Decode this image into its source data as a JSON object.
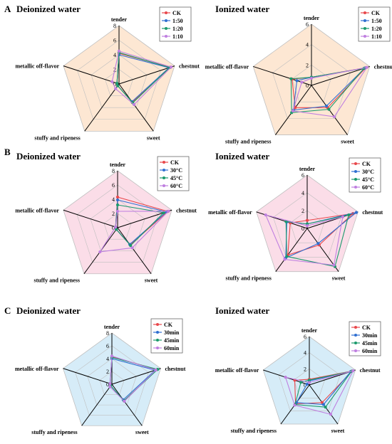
{
  "colors": {
    "CK": "#e8474b",
    "s2": "#2f6fd1",
    "s3": "#1a9a6c",
    "s4": "#bf7fe0",
    "bg_A": "#fde7d3",
    "bg_B": "#fbdde8",
    "bg_C": "#d6ecf8",
    "grid": "#bfbfbf"
  },
  "axes": [
    "tender",
    "chestnut",
    "sweet",
    "stuffy and ripeness",
    "metallic off-flavor"
  ],
  "chart_data": [
    {
      "type": "radar",
      "panel": "A",
      "title": "Deionized water",
      "rmax": 8,
      "ticks": [
        0,
        2,
        4,
        6,
        8
      ],
      "series": [
        {
          "name": "CK",
          "values": [
            4.2,
            7.4,
            3.1,
            0.3,
            0.3
          ]
        },
        {
          "name": "1:50",
          "values": [
            4.0,
            7.2,
            3.0,
            0.3,
            0.3
          ]
        },
        {
          "name": "1:20",
          "values": [
            4.3,
            7.3,
            3.2,
            0.3,
            0.3
          ]
        },
        {
          "name": "1:10",
          "values": [
            4.5,
            7.5,
            3.5,
            0.8,
            1.0
          ]
        }
      ]
    },
    {
      "type": "radar",
      "panel": "A",
      "title": "Ionized water",
      "rmax": 6,
      "ticks": [
        0,
        2,
        4,
        6
      ],
      "series": [
        {
          "name": "CK",
          "values": [
            0.8,
            5.6,
            2.7,
            2.7,
            2.0
          ]
        },
        {
          "name": "1:50",
          "values": [
            0.8,
            5.5,
            2.5,
            3.0,
            1.5
          ]
        },
        {
          "name": "1:20",
          "values": [
            0.8,
            5.4,
            2.9,
            3.3,
            2.1
          ]
        },
        {
          "name": "1:10",
          "values": [
            0.7,
            5.7,
            3.8,
            3.1,
            1.0
          ]
        }
      ]
    },
    {
      "type": "radar",
      "panel": "B",
      "title": "Deionized water",
      "rmax": 8,
      "ticks": [
        0,
        2,
        4,
        6,
        8
      ],
      "series": [
        {
          "name": "CK",
          "values": [
            4.3,
            7.4,
            3.0,
            0.3,
            0.3
          ]
        },
        {
          "name": "30°C",
          "values": [
            3.9,
            7.2,
            2.9,
            0.3,
            0.3
          ]
        },
        {
          "name": "45°C",
          "values": [
            3.2,
            6.8,
            3.1,
            0.3,
            0.3
          ]
        },
        {
          "name": "60°C",
          "values": [
            2.3,
            7.5,
            3.5,
            4.2,
            0.3
          ]
        }
      ]
    },
    {
      "type": "radar",
      "panel": "B",
      "title": "Ionized water",
      "rmax": 6,
      "ticks": [
        0,
        2,
        4,
        6
      ],
      "series": [
        {
          "name": "CK",
          "values": [
            0.9,
            5.4,
            2.3,
            3.7,
            2.0
          ]
        },
        {
          "name": "30°C",
          "values": [
            0.5,
            5.8,
            2.1,
            4.1,
            2.4
          ]
        },
        {
          "name": "45°C",
          "values": [
            0.5,
            4.9,
            5.3,
            3.9,
            2.5
          ]
        },
        {
          "name": "60°C",
          "values": [
            0.3,
            4.2,
            5.1,
            4.3,
            4.9
          ]
        }
      ]
    },
    {
      "type": "radar",
      "panel": "C",
      "title": "Deionized water",
      "rmax": 8,
      "ticks": [
        0,
        2,
        4,
        6,
        8
      ],
      "series": [
        {
          "name": "CK",
          "values": [
            4.3,
            7.4,
            3.2,
            0.3,
            0.3
          ]
        },
        {
          "name": "30min",
          "values": [
            4.0,
            7.1,
            3.0,
            0.3,
            0.3
          ]
        },
        {
          "name": "45min",
          "values": [
            4.2,
            7.5,
            3.2,
            0.3,
            0.3
          ]
        },
        {
          "name": "60min",
          "values": [
            4.4,
            7.2,
            3.3,
            0.5,
            0.3
          ]
        }
      ]
    },
    {
      "type": "radar",
      "panel": "C",
      "title": "Ionized water",
      "rmax": 6,
      "ticks": [
        0,
        2,
        4,
        6
      ],
      "series": [
        {
          "name": "CK",
          "values": [
            0.7,
            5.6,
            2.7,
            2.9,
            1.9
          ]
        },
        {
          "name": "30min",
          "values": [
            0.5,
            5.4,
            3.0,
            2.7,
            0.3
          ]
        },
        {
          "name": "45min",
          "values": [
            0.6,
            5.5,
            3.4,
            3.0,
            1.1
          ]
        },
        {
          "name": "60min",
          "values": [
            0.3,
            5.7,
            4.5,
            3.1,
            3.1
          ]
        }
      ]
    }
  ]
}
